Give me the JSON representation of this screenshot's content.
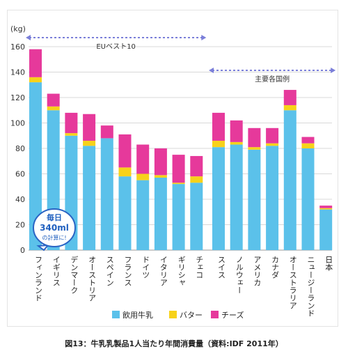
{
  "chart_data": {
    "type": "bar",
    "stacked": true,
    "unit_label": "(kg)",
    "ylim": [
      0,
      160
    ],
    "yticks": [
      0,
      20,
      40,
      60,
      80,
      100,
      120,
      140,
      160
    ],
    "grid": true,
    "legend_position": "bottom",
    "categories": [
      "フィンランド",
      "イギリス",
      "デンマーク",
      "オーストリア",
      "スペイン",
      "フランス",
      "ドイツ",
      "イタリア",
      "ギリシャ",
      "チェコ",
      "スイス",
      "ノルウェー",
      "アメリカ",
      "カナダ",
      "オーストラリア",
      "ニュージーランド",
      "日本"
    ],
    "series": [
      {
        "name": "飲用牛乳",
        "color": "#5bc1ea",
        "values": [
          132,
          110,
          90,
          82,
          88,
          58,
          55,
          57,
          52,
          53,
          81,
          83,
          79,
          82,
          110,
          80,
          32
        ]
      },
      {
        "name": "バター",
        "color": "#f7d21a",
        "values": [
          4,
          3,
          2,
          4,
          0,
          7,
          5,
          2,
          1,
          5,
          5,
          2,
          2,
          2,
          4,
          4,
          1
        ]
      },
      {
        "name": "チーズ",
        "color": "#e6399b",
        "values": [
          22,
          10,
          16,
          21,
          10,
          26,
          23,
          21,
          22,
          16,
          22,
          17,
          15,
          12,
          12,
          5,
          2
        ]
      }
    ],
    "group_labels": [
      {
        "text": "EUベスト10",
        "from": 0,
        "to": 9
      },
      {
        "text": "主要各国例",
        "from": 10,
        "to": 16
      }
    ],
    "annotation": {
      "lines": [
        "毎日",
        "340ml",
        "の計算に!"
      ]
    }
  },
  "caption": "図13：牛乳乳製品1人当たり年間消費量（資料:IDF 2011年）"
}
